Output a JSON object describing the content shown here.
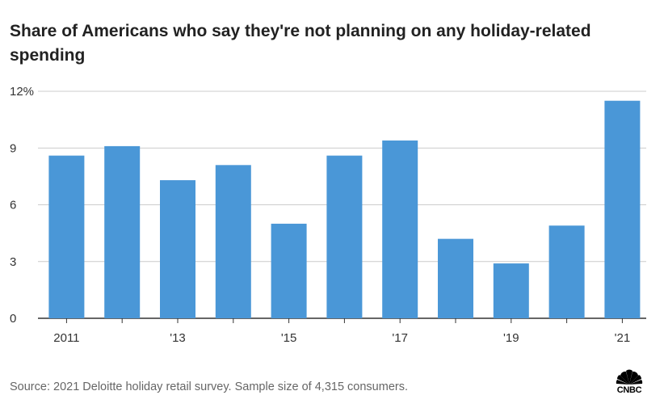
{
  "title": "Share of Americans who say they're not planning on any holiday-related spending",
  "source": "Source: 2021 Deloitte holiday retail survey. Sample size of 4,315 consumers.",
  "logo_text": "CNBC",
  "colors": {
    "bar": "#4a97d7",
    "grid": "#cccccc",
    "axis": "#333333"
  },
  "chart_data": {
    "type": "bar",
    "categories": [
      "2011",
      "2012",
      "2013",
      "2014",
      "2015",
      "2016",
      "2017",
      "2018",
      "2019",
      "2020",
      "2021"
    ],
    "values": [
      8.6,
      9.1,
      7.3,
      8.1,
      5.0,
      8.6,
      9.4,
      4.2,
      2.9,
      4.9,
      11.5
    ],
    "x_tick_labels": [
      "2011",
      "",
      "'13",
      "",
      "'15",
      "",
      "'17",
      "",
      "'19",
      "",
      "'21"
    ],
    "y_ticks": [
      0,
      3,
      6,
      9,
      12
    ],
    "y_tick_labels": [
      "0",
      "3",
      "6",
      "9",
      "12%"
    ],
    "ylim": [
      0,
      12
    ],
    "grid": true
  }
}
